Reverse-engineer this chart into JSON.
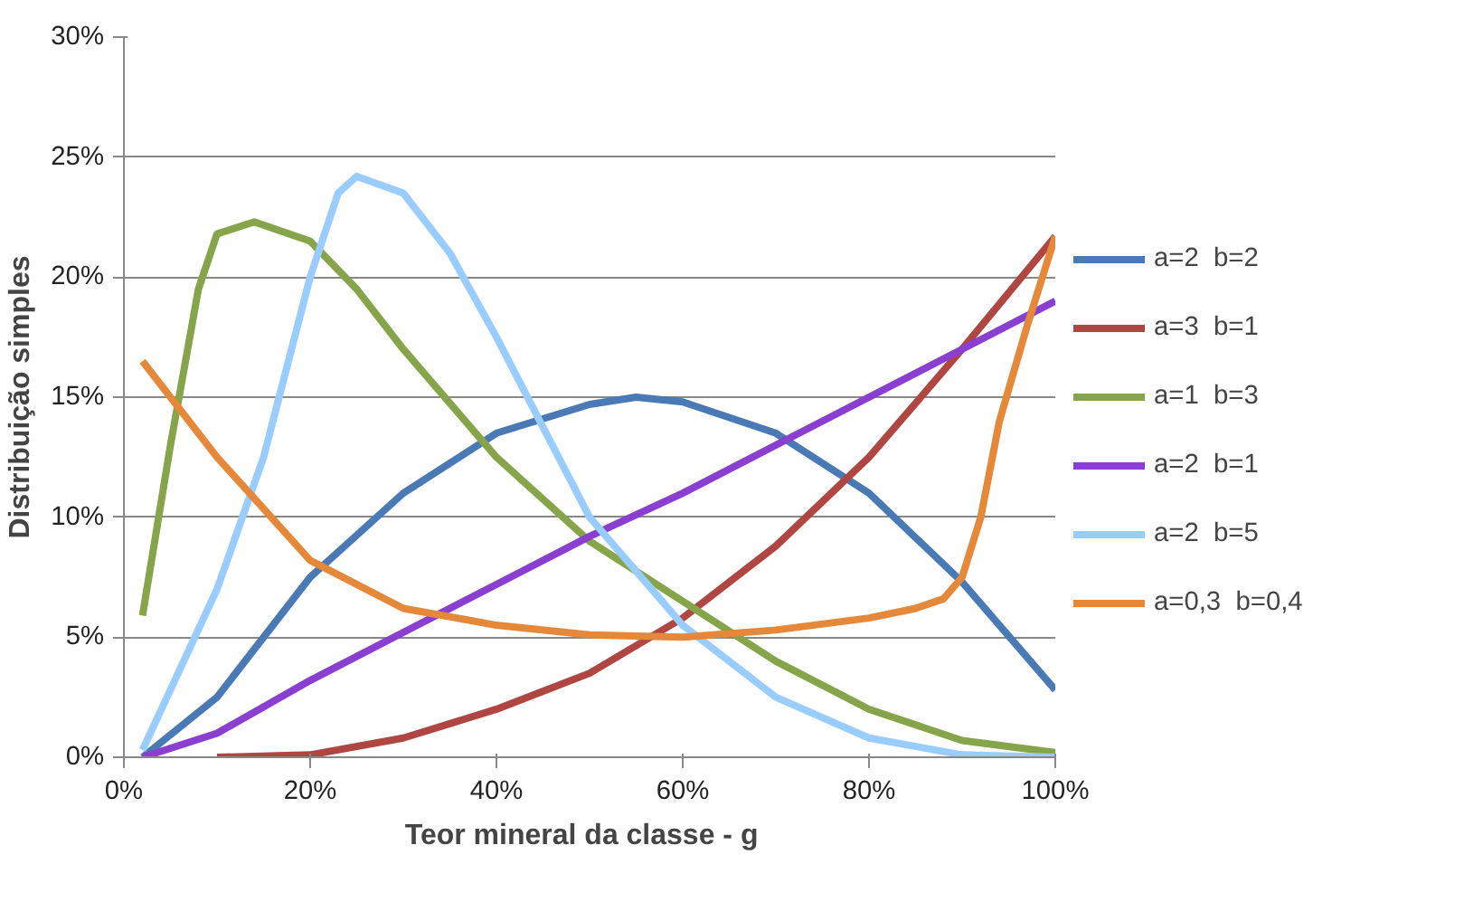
{
  "chart_data": {
    "type": "line",
    "xlabel": "Teor  mineral da classe -  g",
    "ylabel": "Distribuição simples",
    "xlim": [
      0,
      100
    ],
    "ylim": [
      0,
      30
    ],
    "xticks": [
      {
        "value": 0,
        "label": "0%"
      },
      {
        "value": 20,
        "label": "20%"
      },
      {
        "value": 40,
        "label": "40%"
      },
      {
        "value": 60,
        "label": "60%"
      },
      {
        "value": 80,
        "label": "80%"
      },
      {
        "value": 100,
        "label": "100%"
      }
    ],
    "yticks": [
      {
        "value": 0,
        "label": "0%"
      },
      {
        "value": 5,
        "label": "5%"
      },
      {
        "value": 10,
        "label": "10%"
      },
      {
        "value": 15,
        "label": "15%"
      },
      {
        "value": 20,
        "label": "20%"
      },
      {
        "value": 25,
        "label": "25%"
      },
      {
        "value": 30,
        "label": "30%"
      }
    ],
    "grid": "y",
    "legend": "right",
    "marker": "none",
    "line_style": "solid",
    "series": [
      {
        "name": "a=2  b=2",
        "color": "#4a7ab5",
        "x": [
          2,
          10,
          20,
          30,
          40,
          50,
          55,
          60,
          70,
          80,
          90,
          100
        ],
        "values": [
          0,
          2.5,
          7.5,
          11,
          13.5,
          14.7,
          15,
          14.8,
          13.5,
          11,
          7.3,
          2.8
        ]
      },
      {
        "name": "a=3  b=1",
        "color": "#b04641",
        "x": [
          10,
          20,
          30,
          40,
          50,
          60,
          70,
          80,
          90,
          100
        ],
        "values": [
          0,
          0.1,
          0.8,
          2,
          3.5,
          5.8,
          8.8,
          12.5,
          17,
          21.7
        ]
      },
      {
        "name": "a=1  b=3",
        "color": "#86a44a",
        "x": [
          2,
          5,
          8,
          10,
          14,
          20,
          25,
          30,
          40,
          50,
          60,
          70,
          80,
          90,
          100
        ],
        "values": [
          5.9,
          13,
          19.5,
          21.8,
          22.3,
          21.5,
          19.5,
          17,
          12.5,
          9,
          6.5,
          4,
          2,
          0.7,
          0.2
        ]
      },
      {
        "name": "a=2  b=1",
        "color": "#8a3fd1",
        "x": [
          2,
          10,
          20,
          30,
          40,
          50,
          60,
          70,
          80,
          90,
          100
        ],
        "values": [
          0,
          1,
          3.2,
          5.2,
          7.2,
          9.2,
          11,
          13,
          15,
          17,
          19
        ]
      },
      {
        "name": "a=2  b=5",
        "color": "#99ccff",
        "x": [
          2,
          10,
          15,
          20,
          23,
          25,
          30,
          35,
          40,
          50,
          60,
          70,
          80,
          90,
          100
        ],
        "values": [
          0.3,
          7,
          12.5,
          20,
          23.5,
          24.2,
          23.5,
          21,
          17.5,
          10,
          5.5,
          2.5,
          0.8,
          0.1,
          0
        ]
      },
      {
        "name": "a=0,3  b=0,4",
        "color": "#e5883a",
        "x": [
          2,
          10,
          20,
          30,
          40,
          50,
          60,
          70,
          80,
          85,
          88,
          90,
          92,
          94,
          97,
          100
        ],
        "values": [
          16.5,
          12.5,
          8.2,
          6.2,
          5.5,
          5.1,
          5,
          5.3,
          5.8,
          6.2,
          6.6,
          7.5,
          10,
          14,
          18,
          21.7
        ]
      }
    ]
  }
}
